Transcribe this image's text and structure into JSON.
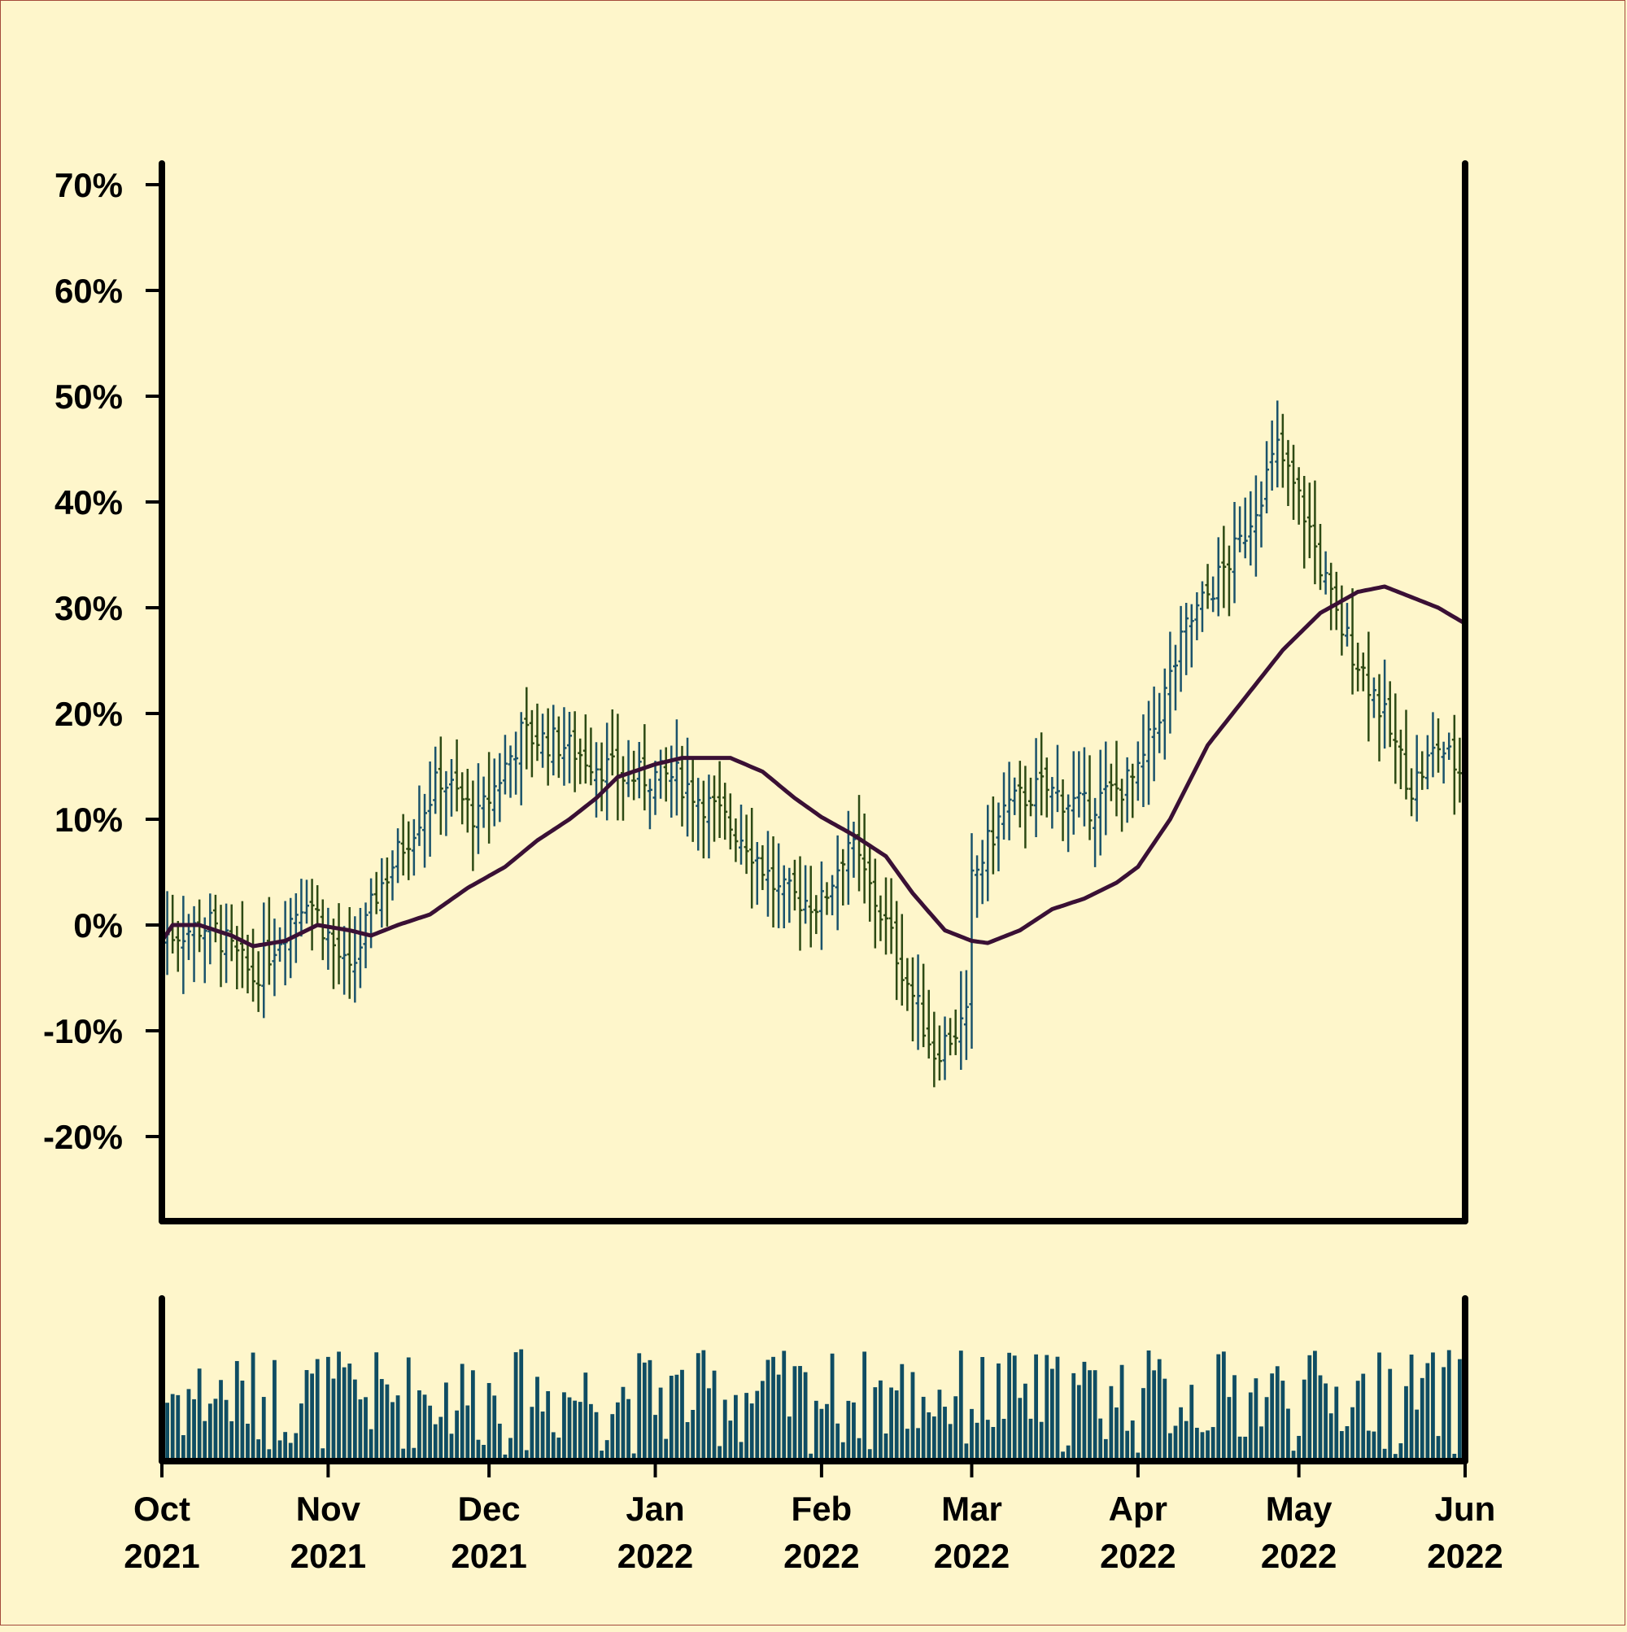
{
  "chart_data": {
    "type": "ohlc",
    "y_tick_labels": [
      "-20%",
      "-10%",
      "0%",
      "10%",
      "20%",
      "30%",
      "40%",
      "50%",
      "60%",
      "70%"
    ],
    "y_ticks": [
      -20,
      -10,
      0,
      10,
      20,
      30,
      40,
      50,
      60,
      70
    ],
    "ylim": [
      -28,
      72
    ],
    "x_ticks": [
      {
        "date": "2021-10-01",
        "month": "Oct",
        "year": "2021"
      },
      {
        "date": "2021-11-01",
        "month": "Nov",
        "year": "2021"
      },
      {
        "date": "2021-12-01",
        "month": "Dec",
        "year": "2021"
      },
      {
        "date": "2022-01-01",
        "month": "Jan",
        "year": "2022"
      },
      {
        "date": "2022-02-01",
        "month": "Feb",
        "year": "2022"
      },
      {
        "date": "2022-03-01",
        "month": "Mar",
        "year": "2022"
      },
      {
        "date": "2022-04-01",
        "month": "Apr",
        "year": "2022"
      },
      {
        "date": "2022-05-01",
        "month": "May",
        "year": "2022"
      },
      {
        "date": "2022-06-01",
        "month": "Jun",
        "year": "2022"
      }
    ],
    "xlim": [
      "2021-10-01",
      "2022-06-01"
    ],
    "price_close_anchors": [
      [
        "2021-10-01",
        -1
      ],
      [
        "2021-10-10",
        0
      ],
      [
        "2021-10-18",
        -5
      ],
      [
        "2021-10-28",
        3
      ],
      [
        "2021-11-05",
        -5
      ],
      [
        "2021-11-10",
        3
      ],
      [
        "2021-11-22",
        14
      ],
      [
        "2021-11-29",
        10
      ],
      [
        "2021-12-07",
        18
      ],
      [
        "2021-12-15",
        17
      ],
      [
        "2021-12-26",
        14
      ],
      [
        "2022-01-05",
        14
      ],
      [
        "2022-01-18",
        8
      ],
      [
        "2022-01-24",
        3
      ],
      [
        "2022-02-01",
        2
      ],
      [
        "2022-02-06",
        8
      ],
      [
        "2022-02-13",
        0
      ],
      [
        "2022-02-22",
        -12
      ],
      [
        "2022-02-28",
        -9
      ],
      [
        "2022-03-01",
        4
      ],
      [
        "2022-03-07",
        11
      ],
      [
        "2022-03-14",
        13
      ],
      [
        "2022-03-22",
        11
      ],
      [
        "2022-04-01",
        14
      ],
      [
        "2022-04-10",
        28
      ],
      [
        "2022-04-20",
        36
      ],
      [
        "2022-04-27",
        45
      ],
      [
        "2022-05-02",
        39
      ],
      [
        "2022-05-08",
        29
      ],
      [
        "2022-05-15",
        22
      ],
      [
        "2022-05-22",
        13
      ],
      [
        "2022-05-27",
        17
      ],
      [
        "2022-06-01",
        14
      ]
    ],
    "moving_average_anchors": [
      [
        "2021-10-01",
        -1.5
      ],
      [
        "2021-10-03",
        0
      ],
      [
        "2021-10-08",
        0
      ],
      [
        "2021-10-14",
        -1
      ],
      [
        "2021-10-18",
        -2
      ],
      [
        "2021-10-24",
        -1.5
      ],
      [
        "2021-10-30",
        0
      ],
      [
        "2021-11-05",
        -0.5
      ],
      [
        "2021-11-09",
        -1
      ],
      [
        "2021-11-14",
        0
      ],
      [
        "2021-11-20",
        1
      ],
      [
        "2021-11-27",
        3.5
      ],
      [
        "2021-12-04",
        5.5
      ],
      [
        "2021-12-10",
        8
      ],
      [
        "2021-12-16",
        10
      ],
      [
        "2021-12-21",
        12
      ],
      [
        "2021-12-25",
        14
      ],
      [
        "2022-01-01",
        15.2
      ],
      [
        "2022-01-06",
        15.8
      ],
      [
        "2022-01-15",
        15.8
      ],
      [
        "2022-01-21",
        14.5
      ],
      [
        "2022-01-27",
        12
      ],
      [
        "2022-02-01",
        10.2
      ],
      [
        "2022-02-07",
        8.5
      ],
      [
        "2022-02-13",
        6.5
      ],
      [
        "2022-02-18",
        3
      ],
      [
        "2022-02-24",
        -0.5
      ],
      [
        "2022-03-01",
        -1.5
      ],
      [
        "2022-03-04",
        -1.7
      ],
      [
        "2022-03-10",
        -0.5
      ],
      [
        "2022-03-16",
        1.5
      ],
      [
        "2022-03-22",
        2.5
      ],
      [
        "2022-03-28",
        4
      ],
      [
        "2022-04-01",
        5.5
      ],
      [
        "2022-04-07",
        10
      ],
      [
        "2022-04-14",
        17
      ],
      [
        "2022-04-21",
        21.5
      ],
      [
        "2022-04-28",
        26
      ],
      [
        "2022-05-05",
        29.5
      ],
      [
        "2022-05-12",
        31.5
      ],
      [
        "2022-05-17",
        32
      ],
      [
        "2022-05-22",
        31
      ],
      [
        "2022-05-27",
        30
      ],
      [
        "2022-06-01",
        28.5
      ]
    ],
    "series": [
      {
        "kind": "ohlc",
        "up_color": "#1a536b",
        "down_color": "#2d4a14"
      },
      {
        "kind": "moving_average",
        "color": "#3a1035"
      },
      {
        "kind": "volume",
        "color": "#0f4d63"
      }
    ],
    "grid": false,
    "legend": "none"
  }
}
